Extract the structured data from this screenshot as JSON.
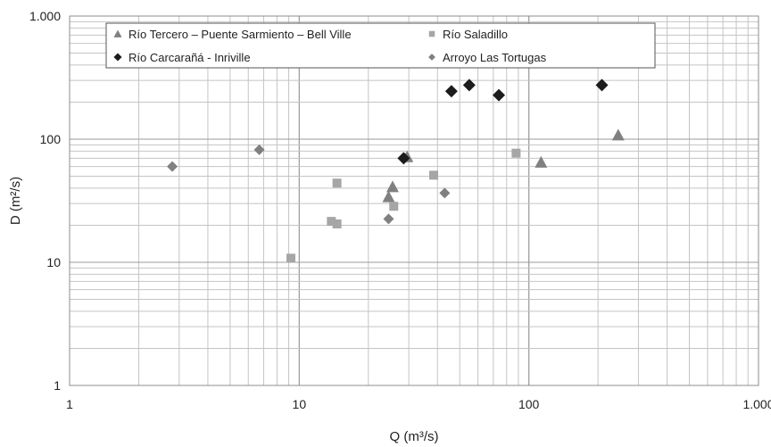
{
  "chart_data": {
    "type": "scatter",
    "x_scale": "log",
    "y_scale": "log",
    "xlim": [
      1,
      1000
    ],
    "ylim": [
      1,
      1000
    ],
    "xlabel": "Q (m³/s)",
    "ylabel": "D (m²/s)",
    "x_ticks": [
      {
        "value": 1,
        "label": "1"
      },
      {
        "value": 10,
        "label": "10"
      },
      {
        "value": 100,
        "label": "100"
      },
      {
        "value": 1000,
        "label": "1.000"
      }
    ],
    "y_ticks": [
      {
        "value": 1,
        "label": "1"
      },
      {
        "value": 10,
        "label": "10"
      },
      {
        "value": 100,
        "label": "100"
      },
      {
        "value": 1000,
        "label": "1.000"
      }
    ],
    "grid": true,
    "legend_position": "top",
    "series": [
      {
        "name": "Río Tercero – Puente Sarmiento – Bell Ville",
        "marker": "triangle",
        "color": "#808080",
        "points": [
          [
            24.5,
            34
          ],
          [
            25.5,
            41
          ],
          [
            29.5,
            72
          ],
          [
            113,
            65
          ],
          [
            245,
            108
          ]
        ]
      },
      {
        "name": "Río Saladillo",
        "marker": "square",
        "color": "#a6a6a6",
        "points": [
          [
            9.2,
            10.8
          ],
          [
            13.8,
            21.5
          ],
          [
            14.6,
            20.5
          ],
          [
            14.6,
            44
          ],
          [
            25.8,
            28.5
          ],
          [
            38.5,
            51
          ],
          [
            88,
            77
          ]
        ]
      },
      {
        "name": "Río Carcarañá - Inriville",
        "marker": "diamond",
        "color": "#1c1c1c",
        "points": [
          [
            28.5,
            70
          ],
          [
            46,
            245
          ],
          [
            55,
            275
          ],
          [
            74,
            228
          ],
          [
            208,
            275
          ]
        ]
      },
      {
        "name": "Arroyo Las Tortugas",
        "marker": "diamond-small",
        "color": "#808080",
        "points": [
          [
            2.8,
            60
          ],
          [
            6.7,
            82
          ],
          [
            24.5,
            22.5
          ],
          [
            43,
            36.5
          ]
        ]
      }
    ]
  }
}
